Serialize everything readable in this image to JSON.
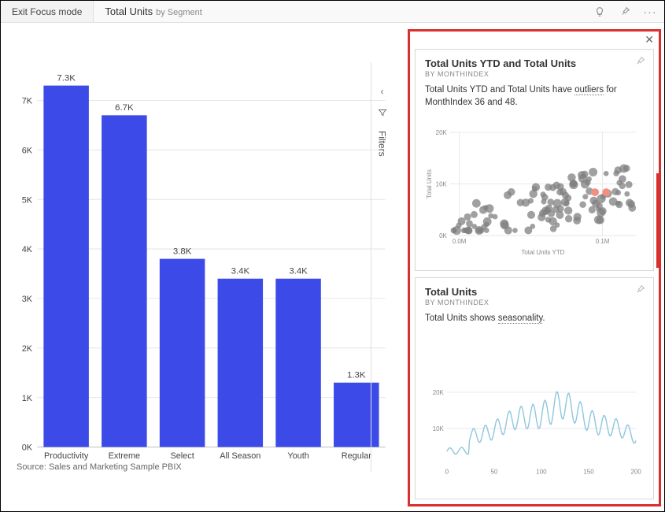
{
  "topbar": {
    "exit_label": "Exit Focus mode",
    "title_main": "Total Units",
    "title_sub": "by Segment"
  },
  "filters_rail": {
    "label": "Filters"
  },
  "bar_chart": {
    "type": "bar",
    "categories": [
      "Productivity",
      "Extreme",
      "Select",
      "All Season",
      "Youth",
      "Regular"
    ],
    "values": [
      7300,
      6700,
      3800,
      3400,
      3400,
      1300
    ],
    "value_labels": [
      "7.3K",
      "6.7K",
      "3.8K",
      "3.4K",
      "3.4K",
      "1.3K"
    ],
    "bar_color": "#3c4ae8",
    "y_ticks": [
      0,
      1000,
      2000,
      3000,
      4000,
      5000,
      6000,
      7000
    ],
    "y_tick_labels": [
      "0K",
      "1K",
      "2K",
      "3K",
      "4K",
      "5K",
      "6K",
      "7K"
    ],
    "grid_color": "#e6e6e6",
    "axis_color": "#bfbfbf",
    "ymax": 7600
  },
  "source_text": "Source: Sales and Marketing Sample PBIX",
  "insights": {
    "card1": {
      "title": "Total Units YTD and Total Units",
      "subtitle": "BY MONTHINDEX",
      "desc_prefix": "Total Units YTD and Total Units have ",
      "desc_kw": "outliers",
      "desc_suffix": " for MonthIndex 36 and 48.",
      "scatter": {
        "type": "scatter",
        "xlabel": "Total Units YTD",
        "ylabel": "Total Units",
        "x_ticks": [
          "0.0M",
          "0.1M"
        ],
        "y_ticks": [
          "0K",
          "10K",
          "20K"
        ],
        "point_color": "#808080",
        "outlier_color": "#f28e82",
        "grid_color": "#e8e8e8",
        "outliers": [
          [
            0.78,
            0.42
          ],
          [
            0.84,
            0.42
          ]
        ]
      }
    },
    "card2": {
      "title": "Total Units",
      "subtitle": "BY MONTHINDEX",
      "desc_prefix": "Total Units shows ",
      "desc_kw": "seasonality",
      "desc_suffix": ".",
      "line": {
        "type": "line",
        "line_color": "#8ec6de",
        "x_ticks": [
          "0",
          "50",
          "100",
          "150",
          "200"
        ],
        "y_ticks": [
          "10K",
          "20K"
        ],
        "grid_color": "#e8e8e8"
      }
    }
  }
}
